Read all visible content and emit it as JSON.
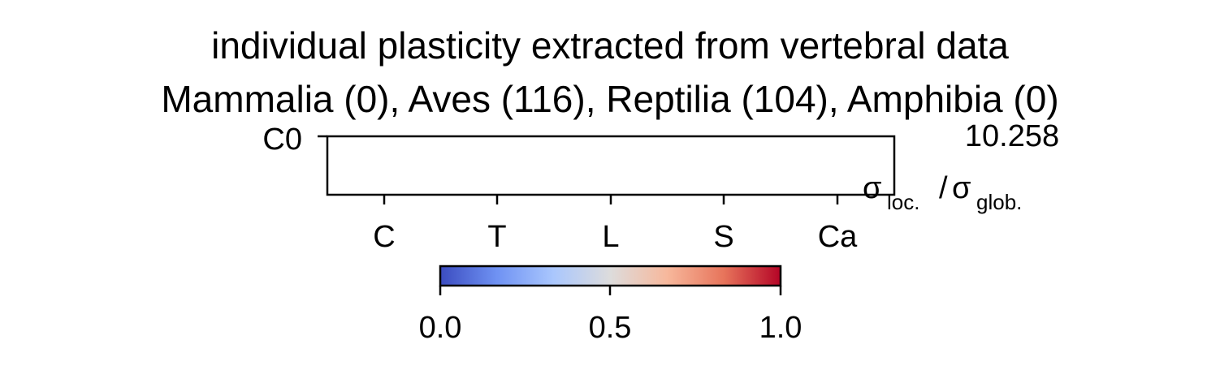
{
  "chart_data": {
    "type": "heatmap",
    "title": "individual plasticity extracted from vertebral data",
    "subtitle": "Mammalia (0), Aves (116), Reptilia (104), Amphibia (0)",
    "rows": [
      "C0"
    ],
    "columns": [
      "C",
      "T",
      "L",
      "S",
      "Ca"
    ],
    "values": [
      [
        null,
        null,
        null,
        null,
        null
      ]
    ],
    "max_value_label": "10.258",
    "ratio_label": {
      "sigma": "σ",
      "loc_sub": "loc.",
      "slash": "/",
      "glob_sub": "glob."
    },
    "colorbar": {
      "colormap": "coolwarm",
      "range": [
        0.0,
        1.0
      ],
      "ticks": [
        "0.0",
        "0.5",
        "1.0"
      ],
      "colors": [
        "#3b4cc0",
        "#6f92f3",
        "#aac7fd",
        "#dddcdc",
        "#f7b89c",
        "#e7745b",
        "#b40426"
      ]
    },
    "grid": false
  }
}
